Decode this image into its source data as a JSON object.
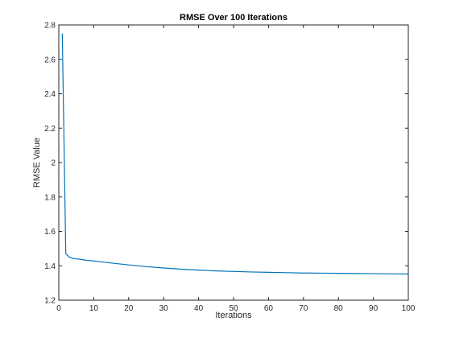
{
  "chart_data": {
    "type": "line",
    "title": "RMSE Over 100 Iterations",
    "xlabel": "Iterations",
    "ylabel": "RMSE Value",
    "xlim": [
      0,
      100
    ],
    "ylim": [
      1.2,
      2.8
    ],
    "xticks": [
      0,
      10,
      20,
      30,
      40,
      50,
      60,
      70,
      80,
      90,
      100
    ],
    "xtick_labels": [
      "0",
      "10",
      "20",
      "30",
      "40",
      "50",
      "60",
      "70",
      "80",
      "90",
      "100"
    ],
    "yticks": [
      1.2,
      1.4,
      1.6,
      1.8,
      2,
      2.2,
      2.4,
      2.6,
      2.8
    ],
    "ytick_labels": [
      "1.2",
      "1.4",
      "1.6",
      "1.8",
      "2",
      "2.2",
      "2.4",
      "2.6",
      "2.8"
    ],
    "grid": false,
    "colors": {
      "line": "#0072BD",
      "axes": "#262626"
    },
    "series": [
      {
        "x": [
          1,
          2,
          3,
          4,
          5,
          6,
          7,
          8,
          9,
          10,
          12,
          15,
          20,
          25,
          30,
          35,
          40,
          45,
          50,
          55,
          60,
          65,
          70,
          75,
          80,
          85,
          90,
          95,
          100
        ],
        "values": [
          2.75,
          1.47,
          1.45,
          1.443,
          1.44,
          1.438,
          1.435,
          1.432,
          1.43,
          1.428,
          1.423,
          1.416,
          1.405,
          1.395,
          1.387,
          1.38,
          1.375,
          1.37,
          1.367,
          1.364,
          1.362,
          1.36,
          1.358,
          1.357,
          1.356,
          1.355,
          1.354,
          1.353,
          1.352
        ]
      }
    ]
  }
}
